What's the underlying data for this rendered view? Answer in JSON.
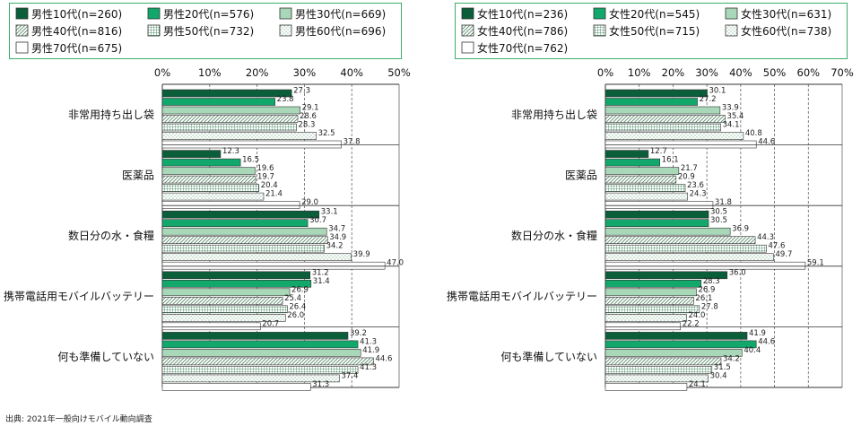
{
  "source": "出典: 2021年一般向けモバイル動向調査",
  "styles": [
    {
      "fill": "#0b5e3a",
      "pattern": "solid"
    },
    {
      "fill": "#12a86b",
      "pattern": "solid"
    },
    {
      "fill": "#a9d8b8",
      "pattern": "solid"
    },
    {
      "fill": "#ffffff",
      "pattern": "diagonal"
    },
    {
      "fill": "#ffffff",
      "pattern": "grid"
    },
    {
      "fill": "#ffffff",
      "pattern": "dots"
    },
    {
      "fill": "#ffffff",
      "pattern": "solid"
    }
  ],
  "chart_data": [
    {
      "type": "bar",
      "orientation": "horizontal",
      "categories": [
        "非常用持ち出し袋",
        "医薬品",
        "数日分の水・食糧",
        "携帯電話用モバイルバッテリー",
        "何も準備していない"
      ],
      "xlim": [
        0,
        50
      ],
      "xticks": [
        "0%",
        "10%",
        "20%",
        "30%",
        "40%",
        "50%"
      ],
      "grid": true,
      "legend_position": "top",
      "series": [
        {
          "name": "男性10代(n=260)",
          "values": [
            27.3,
            12.3,
            33.1,
            31.2,
            39.2
          ]
        },
        {
          "name": "男性20代(n=576)",
          "values": [
            23.8,
            16.5,
            30.7,
            31.4,
            41.3
          ]
        },
        {
          "name": "男性30代(n=669)",
          "values": [
            29.1,
            19.6,
            34.7,
            26.9,
            41.9
          ]
        },
        {
          "name": "男性40代(n=816)",
          "values": [
            28.6,
            19.7,
            34.9,
            25.4,
            44.6
          ]
        },
        {
          "name": "男性50代(n=732)",
          "values": [
            28.3,
            20.4,
            34.2,
            26.4,
            41.3
          ]
        },
        {
          "name": "男性60代(n=696)",
          "values": [
            32.5,
            21.4,
            39.9,
            26.0,
            37.4
          ]
        },
        {
          "name": "男性70代(n=675)",
          "values": [
            37.8,
            29.0,
            47.0,
            20.7,
            31.3
          ]
        }
      ]
    },
    {
      "type": "bar",
      "orientation": "horizontal",
      "categories": [
        "非常用持ち出し袋",
        "医薬品",
        "数日分の水・食糧",
        "携帯電話用モバイルバッテリー",
        "何も準備していない"
      ],
      "xlim": [
        0,
        70
      ],
      "xticks": [
        "0%",
        "10%",
        "20%",
        "30%",
        "40%",
        "50%",
        "60%",
        "70%"
      ],
      "grid": true,
      "legend_position": "top",
      "series": [
        {
          "name": "女性10代(n=236)",
          "values": [
            30.1,
            12.7,
            30.5,
            36.0,
            41.9
          ]
        },
        {
          "name": "女性20代(n=545)",
          "values": [
            27.2,
            16.1,
            30.5,
            28.3,
            44.6
          ]
        },
        {
          "name": "女性30代(n=631)",
          "values": [
            33.9,
            21.7,
            36.9,
            26.9,
            40.4
          ]
        },
        {
          "name": "女性40代(n=786)",
          "values": [
            35.4,
            20.9,
            44.3,
            26.1,
            34.2
          ]
        },
        {
          "name": "女性50代(n=715)",
          "values": [
            34.1,
            23.6,
            47.6,
            27.8,
            31.5
          ]
        },
        {
          "name": "女性60代(n=738)",
          "values": [
            40.8,
            24.3,
            49.7,
            24.0,
            30.4
          ]
        },
        {
          "name": "女性70代(n=762)",
          "values": [
            44.6,
            31.8,
            59.1,
            22.2,
            24.1
          ]
        }
      ]
    }
  ]
}
